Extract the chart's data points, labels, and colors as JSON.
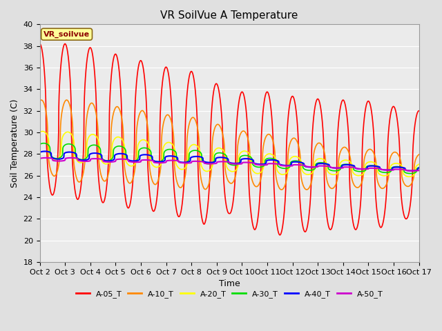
{
  "title": "VR SoilVue A Temperature",
  "xlabel": "Time",
  "ylabel": "Soil Temperature (C)",
  "ylim": [
    18,
    40
  ],
  "xlim": [
    0,
    15
  ],
  "xtick_labels": [
    "Oct 2",
    "Oct 3",
    "Oct 4",
    "Oct 5",
    "Oct 6",
    "Oct 7",
    "Oct 8",
    "Oct 9",
    "Oct 10",
    "Oct 11",
    "Oct 12",
    "Oct 13",
    "Oct 14",
    "Oct 15",
    "Oct 16",
    "Oct 17"
  ],
  "ytick_values": [
    18,
    20,
    22,
    24,
    26,
    28,
    30,
    32,
    34,
    36,
    38,
    40
  ],
  "legend_label": "VR_soilvue",
  "series_labels": [
    "A-05_T",
    "A-10_T",
    "A-20_T",
    "A-30_T",
    "A-40_T",
    "A-50_T"
  ],
  "series_colors": [
    "#ff0000",
    "#ff8800",
    "#ffff00",
    "#00dd00",
    "#0000ff",
    "#cc00cc"
  ],
  "background_color": "#e0e0e0",
  "plot_bg_color": "#ebebeb",
  "grid_color": "#ffffff",
  "title_fontsize": 11,
  "axis_fontsize": 9,
  "tick_fontsize": 8,
  "legend_box_color": "#ffff99",
  "legend_box_edge": "#8b6914"
}
